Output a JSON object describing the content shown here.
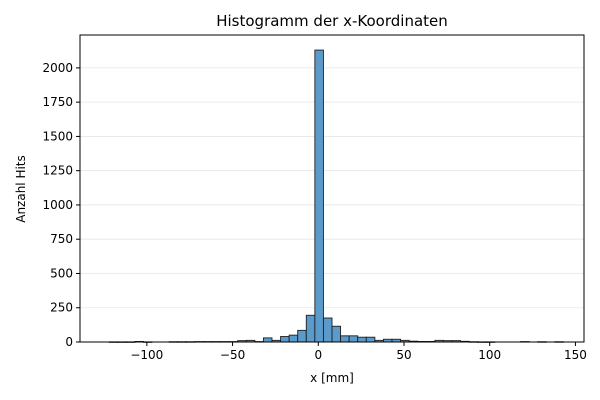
{
  "chart_data": {
    "type": "bar",
    "title": "Histogramm der x-Koordinaten",
    "xlabel": "x [mm]",
    "ylabel": "Anzahl Hits",
    "xlim": [
      -139,
      155
    ],
    "ylim": [
      0,
      2240
    ],
    "xticks": [
      -100,
      -50,
      0,
      50,
      100,
      150
    ],
    "xtick_labels": [
      "−100",
      "−50",
      "0",
      "50",
      "100",
      "150"
    ],
    "yticks": [
      0,
      250,
      500,
      750,
      1000,
      1250,
      1500,
      1750,
      2000
    ],
    "ytick_labels": [
      "0",
      "250",
      "500",
      "750",
      "1000",
      "1250",
      "1500",
      "1750",
      "2000"
    ],
    "bin_width": 5,
    "bins": [
      {
        "x0": -122,
        "value": 1
      },
      {
        "x0": -117,
        "value": 1
      },
      {
        "x0": -112,
        "value": 1
      },
      {
        "x0": -107,
        "value": 4
      },
      {
        "x0": -102,
        "value": 1
      },
      {
        "x0": -87,
        "value": 2
      },
      {
        "x0": -82,
        "value": 2
      },
      {
        "x0": -77,
        "value": 2
      },
      {
        "x0": -72,
        "value": 3
      },
      {
        "x0": -67,
        "value": 3
      },
      {
        "x0": -62,
        "value": 3
      },
      {
        "x0": -57,
        "value": 3
      },
      {
        "x0": -52,
        "value": 3
      },
      {
        "x0": -47,
        "value": 10
      },
      {
        "x0": -42,
        "value": 12
      },
      {
        "x0": -37,
        "value": 3
      },
      {
        "x0": -32,
        "value": 30
      },
      {
        "x0": -27,
        "value": 12
      },
      {
        "x0": -22,
        "value": 40
      },
      {
        "x0": -17,
        "value": 50
      },
      {
        "x0": -12,
        "value": 85
      },
      {
        "x0": -7,
        "value": 195
      },
      {
        "x0": -2,
        "value": 2130
      },
      {
        "x0": 3,
        "value": 175
      },
      {
        "x0": 8,
        "value": 115
      },
      {
        "x0": 13,
        "value": 45
      },
      {
        "x0": 18,
        "value": 45
      },
      {
        "x0": 23,
        "value": 35
      },
      {
        "x0": 28,
        "value": 35
      },
      {
        "x0": 33,
        "value": 12
      },
      {
        "x0": 38,
        "value": 20
      },
      {
        "x0": 43,
        "value": 20
      },
      {
        "x0": 48,
        "value": 12
      },
      {
        "x0": 53,
        "value": 6
      },
      {
        "x0": 58,
        "value": 4
      },
      {
        "x0": 63,
        "value": 4
      },
      {
        "x0": 68,
        "value": 12
      },
      {
        "x0": 73,
        "value": 10
      },
      {
        "x0": 78,
        "value": 10
      },
      {
        "x0": 83,
        "value": 5
      },
      {
        "x0": 88,
        "value": 2
      },
      {
        "x0": 93,
        "value": 1
      },
      {
        "x0": 98,
        "value": 1
      },
      {
        "x0": 118,
        "value": 3
      },
      {
        "x0": 128,
        "value": 2
      },
      {
        "x0": 138,
        "value": 2
      }
    ],
    "grid": "y-only",
    "bar_color": "#5b9bcb",
    "edge_color": "#1f1f1f"
  }
}
